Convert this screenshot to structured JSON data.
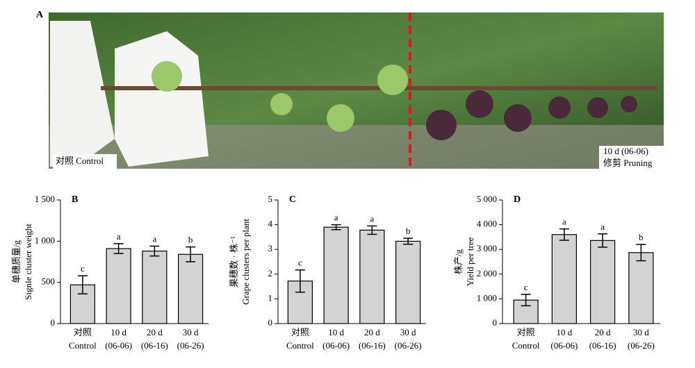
{
  "photo": {
    "label": "A",
    "left_label": "对照 Control",
    "right_label": [
      "10 d (06-06)",
      "修剪 Pruning"
    ]
  },
  "chart_data": [
    {
      "type": "bar",
      "label": "B",
      "ylabel": [
        "单穗质量/g",
        "Signle cluster weight"
      ],
      "categories": [
        "对照",
        "10 d",
        "20 d",
        "30 d"
      ],
      "category_sublabels": [
        "Control",
        "(06-06)",
        "(06-16)",
        "(06-26)"
      ],
      "values": [
        470,
        910,
        880,
        840
      ],
      "errors": [
        110,
        60,
        60,
        90
      ],
      "annotations": [
        "c",
        "a",
        "a",
        "b"
      ],
      "color": "#d3d3d3",
      "ylim": [
        0,
        1500
      ],
      "yticks": [
        0,
        500,
        {
          "value": 1000,
          "label": "1 000"
        },
        {
          "value": 1500,
          "label": "1 500"
        }
      ]
    },
    {
      "type": "bar",
      "label": "C",
      "ylabel": [
        "果穗数 · 株⁻¹",
        "Grape clusters per plant"
      ],
      "categories": [
        "对照",
        "10 d",
        "20 d",
        "30 d"
      ],
      "category_sublabels": [
        "Control",
        "(06-06)",
        "(06-16)",
        "(06-26)"
      ],
      "values": [
        1.72,
        3.9,
        3.78,
        3.33
      ],
      "errors": [
        0.45,
        0.1,
        0.17,
        0.12
      ],
      "annotations": [
        "c",
        "a",
        "a",
        "b"
      ],
      "color": "#d3d3d3",
      "ylim": [
        0,
        5
      ],
      "yticks": [
        0,
        1,
        2,
        3,
        4,
        5
      ]
    },
    {
      "type": "bar",
      "label": "D",
      "ylabel": [
        "株产/g",
        "Yield per tree"
      ],
      "categories": [
        "对照",
        "10 d",
        "20 d",
        "30 d"
      ],
      "category_sublabels": [
        "Control",
        "(06-06)",
        "(06-16)",
        "(06-26)"
      ],
      "values": [
        950,
        3600,
        3360,
        2870
      ],
      "errors": [
        230,
        230,
        270,
        330
      ],
      "annotations": [
        "c",
        "a",
        "a",
        "b"
      ],
      "color": "#d3d3d3",
      "ylim": [
        0,
        5000
      ],
      "yticks": [
        0,
        {
          "value": 1000,
          "label": "1 000"
        },
        {
          "value": 2000,
          "label": "2 000"
        },
        {
          "value": 3000,
          "label": "3 000"
        },
        {
          "value": 4000,
          "label": "4 000"
        },
        {
          "value": 5000,
          "label": "5 000"
        }
      ]
    }
  ]
}
